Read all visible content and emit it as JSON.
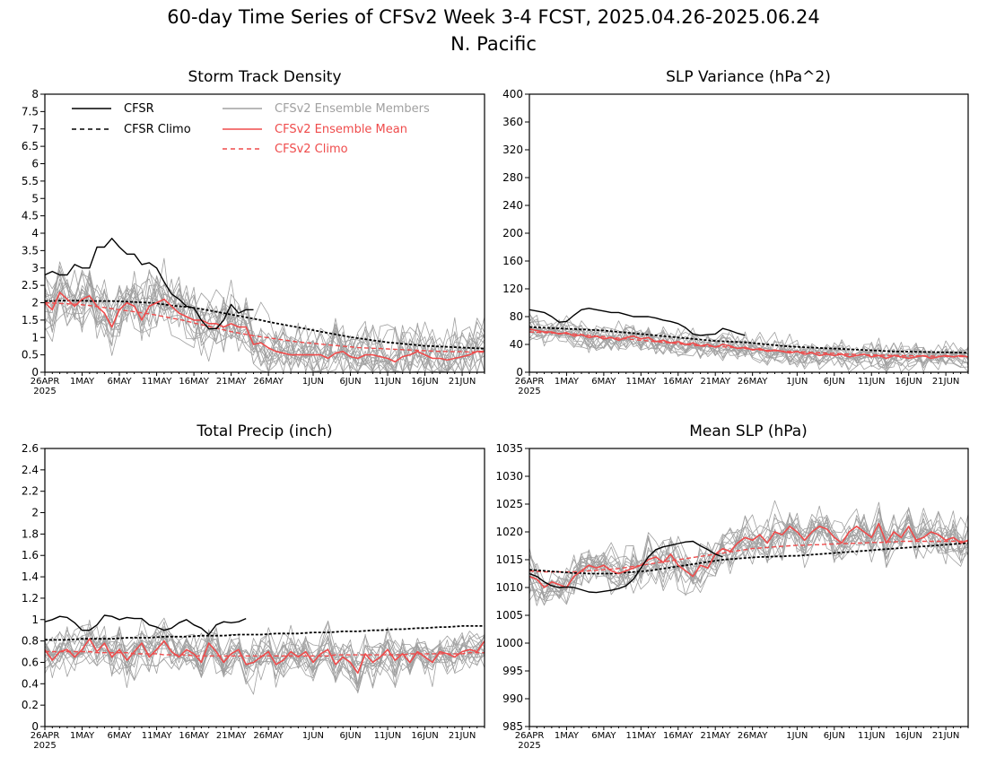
{
  "suptitle": "60-day Time Series of CFSv2 Week 3-4 FCST, 2025.04.26-2025.06.24",
  "subtitle": "N. Pacific",
  "colors": {
    "cfsr": "#000000",
    "members": "#a0a0a0",
    "ens_mean": "#ef4b4b",
    "cfsv2_climo": "#ef4b4b"
  },
  "legend": {
    "cfsr": "CFSR",
    "cfsr_climo": "CFSR Climo",
    "members": "CFSv2 Ensemble Members",
    "ens_mean": "CFSv2 Ensemble Mean",
    "cfsv2_climo": "CFSv2 Climo"
  },
  "x_ticks": [
    "26APR",
    "1MAY",
    "6MAY",
    "11MAY",
    "16MAY",
    "21MAY",
    "26MAY",
    "1JUN",
    "6JUN",
    "11JUN",
    "16JUN",
    "21JUN"
  ],
  "x_year": "2025",
  "chart_data": [
    {
      "type": "line",
      "title": "Storm Track Density",
      "ylim": [
        0,
        8
      ],
      "yticks": [
        "0",
        "0.5",
        "1",
        "1.5",
        "2",
        "2.5",
        "3",
        "3.5",
        "4",
        "4.5",
        "5",
        "5.5",
        "6",
        "6.5",
        "7",
        "7.5",
        "8"
      ],
      "legend_position": "top-left",
      "cfsr": [
        2.8,
        2.9,
        2.8,
        2.8,
        3.1,
        3.0,
        3.0,
        3.6,
        3.6,
        3.85,
        3.6,
        3.4,
        3.4,
        3.1,
        3.15,
        3.0,
        2.6,
        2.25,
        2.1,
        1.9,
        1.85,
        1.5,
        1.25,
        1.25,
        1.5,
        1.95,
        1.7,
        1.8,
        1.8
      ],
      "cfsr_climo": [
        2.05,
        2.05,
        2.06,
        2.06,
        2.06,
        2.06,
        2.05,
        2.05,
        2.05,
        2.05,
        2.04,
        2.03,
        2.02,
        2.01,
        2.0,
        1.98,
        1.95,
        1.92,
        1.9,
        1.88,
        1.85,
        1.82,
        1.78,
        1.74,
        1.7,
        1.66,
        1.62,
        1.58,
        1.54,
        1.5,
        1.45,
        1.41,
        1.37,
        1.33,
        1.29,
        1.25,
        1.21,
        1.17,
        1.13,
        1.09,
        1.05,
        1.01,
        0.98,
        0.95,
        0.92,
        0.89,
        0.86,
        0.84,
        0.82,
        0.8,
        0.78,
        0.76,
        0.75,
        0.74,
        0.73,
        0.72,
        0.71,
        0.7,
        0.69,
        0.68
      ],
      "ens_mean": [
        2.0,
        1.8,
        2.3,
        2.1,
        1.9,
        2.1,
        2.2,
        1.9,
        1.7,
        1.3,
        1.8,
        2.0,
        1.9,
        1.5,
        1.9,
        2.0,
        2.1,
        1.9,
        1.7,
        1.6,
        1.5,
        1.5,
        1.4,
        1.4,
        1.3,
        1.4,
        1.3,
        1.3,
        0.8,
        0.85,
        0.7,
        0.6,
        0.55,
        0.5,
        0.5,
        0.5,
        0.5,
        0.5,
        0.4,
        0.55,
        0.6,
        0.45,
        0.4,
        0.5,
        0.5,
        0.45,
        0.4,
        0.3,
        0.45,
        0.5,
        0.6,
        0.5,
        0.4,
        0.4,
        0.35,
        0.4,
        0.45,
        0.5,
        0.6,
        0.6
      ],
      "cfsv2_climo": [
        2.0,
        1.99,
        1.98,
        1.97,
        1.96,
        1.94,
        1.92,
        1.89,
        1.86,
        1.83,
        1.8,
        1.77,
        1.74,
        1.71,
        1.68,
        1.64,
        1.6,
        1.56,
        1.52,
        1.47,
        1.42,
        1.37,
        1.32,
        1.27,
        1.22,
        1.17,
        1.13,
        1.09,
        1.05,
        1.02,
        0.99,
        0.96,
        0.93,
        0.9,
        0.87,
        0.85,
        0.83,
        0.81,
        0.79,
        0.77,
        0.75,
        0.73,
        0.71,
        0.7,
        0.69,
        0.68,
        0.67,
        0.66,
        0.65,
        0.64,
        0.63,
        0.62,
        0.61,
        0.6,
        0.6,
        0.59,
        0.59,
        0.58,
        0.58,
        0.58
      ],
      "member_spread": 0.55,
      "member_floor": 0
    },
    {
      "type": "line",
      "title": "SLP Variance (hPa^2)",
      "ylim": [
        0,
        400
      ],
      "yticks": [
        "0",
        "40",
        "80",
        "120",
        "160",
        "200",
        "240",
        "280",
        "320",
        "360",
        "400"
      ],
      "cfsr": [
        90,
        88,
        86,
        80,
        72,
        73,
        82,
        90,
        92,
        90,
        88,
        86,
        86,
        83,
        80,
        80,
        80,
        78,
        75,
        73,
        70,
        64,
        55,
        53,
        54,
        55,
        63,
        60,
        56,
        53
      ],
      "cfsr_climo": [
        65,
        64.5,
        64,
        63.5,
        63,
        62.5,
        62,
        61.5,
        61,
        60.5,
        60,
        59,
        58,
        57,
        56,
        55,
        54,
        53,
        52,
        51,
        50,
        49,
        48,
        47,
        46,
        45,
        44.5,
        44,
        43.5,
        43,
        42,
        41,
        40,
        39,
        38,
        37,
        36.5,
        36,
        35.5,
        35,
        34.5,
        34,
        33.5,
        33,
        32.5,
        32,
        31.5,
        31,
        30.5,
        30,
        29.8,
        29.6,
        29.4,
        29.2,
        29,
        28.8,
        28.6,
        28.4,
        28.2,
        28
      ],
      "ens_mean": [
        62,
        60,
        58,
        58,
        55,
        57,
        52,
        54,
        50,
        52,
        48,
        50,
        46,
        50,
        52,
        48,
        50,
        44,
        46,
        42,
        44,
        40,
        42,
        38,
        40,
        36,
        40,
        38,
        34,
        36,
        32,
        34,
        30,
        32,
        30,
        28,
        30,
        26,
        28,
        24,
        26,
        24,
        26,
        22,
        24,
        26,
        22,
        24,
        20,
        24,
        22,
        20,
        22,
        24,
        20,
        22,
        24,
        22,
        24,
        22
      ],
      "cfsv2_climo": [
        58,
        57.5,
        57,
        56.5,
        56,
        55.5,
        55,
        54,
        53,
        52,
        51,
        50,
        49,
        48,
        47,
        46,
        45,
        44,
        43,
        42,
        41,
        40,
        39,
        38,
        37.5,
        37,
        36.5,
        36,
        35,
        34,
        33,
        32,
        31.5,
        31,
        30.5,
        30,
        29.5,
        29,
        28.5,
        28,
        27.5,
        27,
        26.5,
        26,
        25.5,
        25,
        24.8,
        24.6,
        24.4,
        24.2,
        24,
        23.8,
        23.6,
        23.4,
        23.2,
        23,
        22.8,
        22.6,
        22.4,
        22.2
      ],
      "member_spread": 12,
      "member_floor": 10
    },
    {
      "type": "line",
      "title": "Total Precip (inch)",
      "ylim": [
        0,
        2.6
      ],
      "yticks": [
        "0",
        "0.2",
        "0.4",
        "0.6",
        "0.8",
        "1",
        "1.2",
        "1.4",
        "1.6",
        "1.8",
        "2",
        "2.2",
        "2.4",
        "2.6"
      ],
      "cfsr": [
        0.98,
        1.0,
        1.03,
        1.02,
        0.97,
        0.9,
        0.9,
        0.95,
        1.04,
        1.03,
        1.0,
        1.02,
        1.01,
        1.01,
        0.95,
        0.93,
        0.9,
        0.92,
        0.97,
        1.0,
        0.95,
        0.92,
        0.86,
        0.95,
        0.98,
        0.97,
        0.98,
        1.01
      ],
      "cfsr_climo": [
        0.81,
        0.81,
        0.81,
        0.81,
        0.815,
        0.82,
        0.82,
        0.82,
        0.82,
        0.82,
        0.825,
        0.83,
        0.83,
        0.83,
        0.83,
        0.835,
        0.84,
        0.84,
        0.84,
        0.84,
        0.845,
        0.85,
        0.85,
        0.85,
        0.85,
        0.855,
        0.86,
        0.86,
        0.86,
        0.86,
        0.865,
        0.87,
        0.87,
        0.87,
        0.87,
        0.875,
        0.88,
        0.88,
        0.88,
        0.885,
        0.89,
        0.89,
        0.89,
        0.895,
        0.9,
        0.9,
        0.905,
        0.91,
        0.91,
        0.915,
        0.92,
        0.92,
        0.925,
        0.93,
        0.93,
        0.935,
        0.94,
        0.94,
        0.94,
        0.94
      ],
      "ens_mean": [
        0.72,
        0.62,
        0.7,
        0.72,
        0.65,
        0.72,
        0.82,
        0.7,
        0.78,
        0.65,
        0.72,
        0.62,
        0.7,
        0.78,
        0.65,
        0.72,
        0.8,
        0.7,
        0.65,
        0.72,
        0.68,
        0.6,
        0.78,
        0.7,
        0.6,
        0.68,
        0.72,
        0.58,
        0.6,
        0.65,
        0.7,
        0.58,
        0.62,
        0.7,
        0.65,
        0.7,
        0.6,
        0.68,
        0.72,
        0.58,
        0.65,
        0.6,
        0.5,
        0.68,
        0.6,
        0.65,
        0.72,
        0.62,
        0.68,
        0.6,
        0.7,
        0.65,
        0.6,
        0.7,
        0.68,
        0.65,
        0.7,
        0.72,
        0.7,
        0.8
      ],
      "cfsv2_climo": [
        0.7,
        0.7,
        0.7,
        0.7,
        0.7,
        0.7,
        0.7,
        0.69,
        0.69,
        0.69,
        0.69,
        0.69,
        0.68,
        0.68,
        0.68,
        0.68,
        0.67,
        0.67,
        0.67,
        0.67,
        0.66,
        0.66,
        0.66,
        0.66,
        0.66,
        0.66,
        0.66,
        0.66,
        0.66,
        0.66,
        0.66,
        0.66,
        0.66,
        0.66,
        0.66,
        0.66,
        0.66,
        0.66,
        0.66,
        0.67,
        0.67,
        0.67,
        0.67,
        0.67,
        0.67,
        0.67,
        0.67,
        0.67,
        0.67,
        0.68,
        0.68,
        0.68,
        0.68,
        0.68,
        0.68,
        0.68,
        0.68,
        0.69,
        0.69,
        0.69
      ],
      "member_spread": 0.12,
      "member_floor": 0.3
    },
    {
      "type": "line",
      "title": "Mean SLP (hPa)",
      "ylim": [
        985,
        1035
      ],
      "yticks": [
        "985",
        "990",
        "995",
        "1000",
        "1005",
        "1010",
        "1015",
        "1020",
        "1025",
        "1030",
        "1035"
      ],
      "cfsr": [
        1012.5,
        1012,
        1011,
        1010.3,
        1010,
        1010.1,
        1010,
        1009.6,
        1009.2,
        1009.1,
        1009.3,
        1009.5,
        1009.8,
        1010.3,
        1011.5,
        1013.5,
        1015.5,
        1016.8,
        1017.3,
        1017.6,
        1017.9,
        1018.2,
        1018.3,
        1017.5,
        1016.8,
        1016,
        1015.5
      ],
      "cfsr_climo": [
        1013.2,
        1013.1,
        1013.0,
        1012.9,
        1012.8,
        1012.7,
        1012.6,
        1012.6,
        1012.5,
        1012.5,
        1012.5,
        1012.5,
        1012.6,
        1012.7,
        1012.8,
        1012.9,
        1013.0,
        1013.2,
        1013.4,
        1013.6,
        1013.8,
        1014.0,
        1014.2,
        1014.4,
        1014.6,
        1014.8,
        1015.0,
        1015.1,
        1015.2,
        1015.3,
        1015.4,
        1015.5,
        1015.5,
        1015.6,
        1015.6,
        1015.7,
        1015.7,
        1015.8,
        1015.9,
        1016.0,
        1016.1,
        1016.2,
        1016.3,
        1016.4,
        1016.5,
        1016.6,
        1016.7,
        1016.8,
        1016.9,
        1017.0,
        1017.1,
        1017.2,
        1017.3,
        1017.4,
        1017.5,
        1017.6,
        1017.7,
        1017.8,
        1017.9,
        1018.0
      ],
      "ens_mean": [
        1012,
        1011.5,
        1010,
        1011,
        1010.5,
        1010,
        1012,
        1013,
        1014,
        1013.5,
        1014,
        1013,
        1012.5,
        1013,
        1013.5,
        1014,
        1015,
        1015.5,
        1014.5,
        1016,
        1014,
        1013,
        1012,
        1014,
        1013.5,
        1016,
        1017,
        1016.5,
        1018,
        1019,
        1018.5,
        1019.5,
        1018,
        1020,
        1019.5,
        1021,
        1020,
        1018.5,
        1020,
        1021,
        1020.5,
        1019,
        1018,
        1020,
        1021,
        1020,
        1019,
        1021.5,
        1018,
        1020,
        1019,
        1021,
        1018.5,
        1019,
        1020,
        1019.5,
        1018.5,
        1019,
        1018,
        1018.5
      ],
      "cfsv2_climo": [
        1013.0,
        1012.9,
        1012.8,
        1012.8,
        1012.8,
        1012.8,
        1012.8,
        1012.9,
        1013.0,
        1013.1,
        1013.2,
        1013.3,
        1013.4,
        1013.6,
        1013.8,
        1014.0,
        1014.2,
        1014.4,
        1014.6,
        1014.8,
        1015.0,
        1015.2,
        1015.4,
        1015.6,
        1015.8,
        1016.0,
        1016.2,
        1016.4,
        1016.6,
        1016.8,
        1017.0,
        1017.1,
        1017.2,
        1017.3,
        1017.4,
        1017.5,
        1017.6,
        1017.6,
        1017.7,
        1017.7,
        1017.8,
        1017.8,
        1017.9,
        1017.9,
        1018.0,
        1018.0,
        1018.1,
        1018.1,
        1018.2,
        1018.2,
        1018.3,
        1018.3,
        1018.3,
        1018.3,
        1018.3,
        1018.3,
        1018.3,
        1018.3,
        1018.3,
        1018.3
      ],
      "member_spread": 2.5,
      "member_floor": 1000
    }
  ]
}
